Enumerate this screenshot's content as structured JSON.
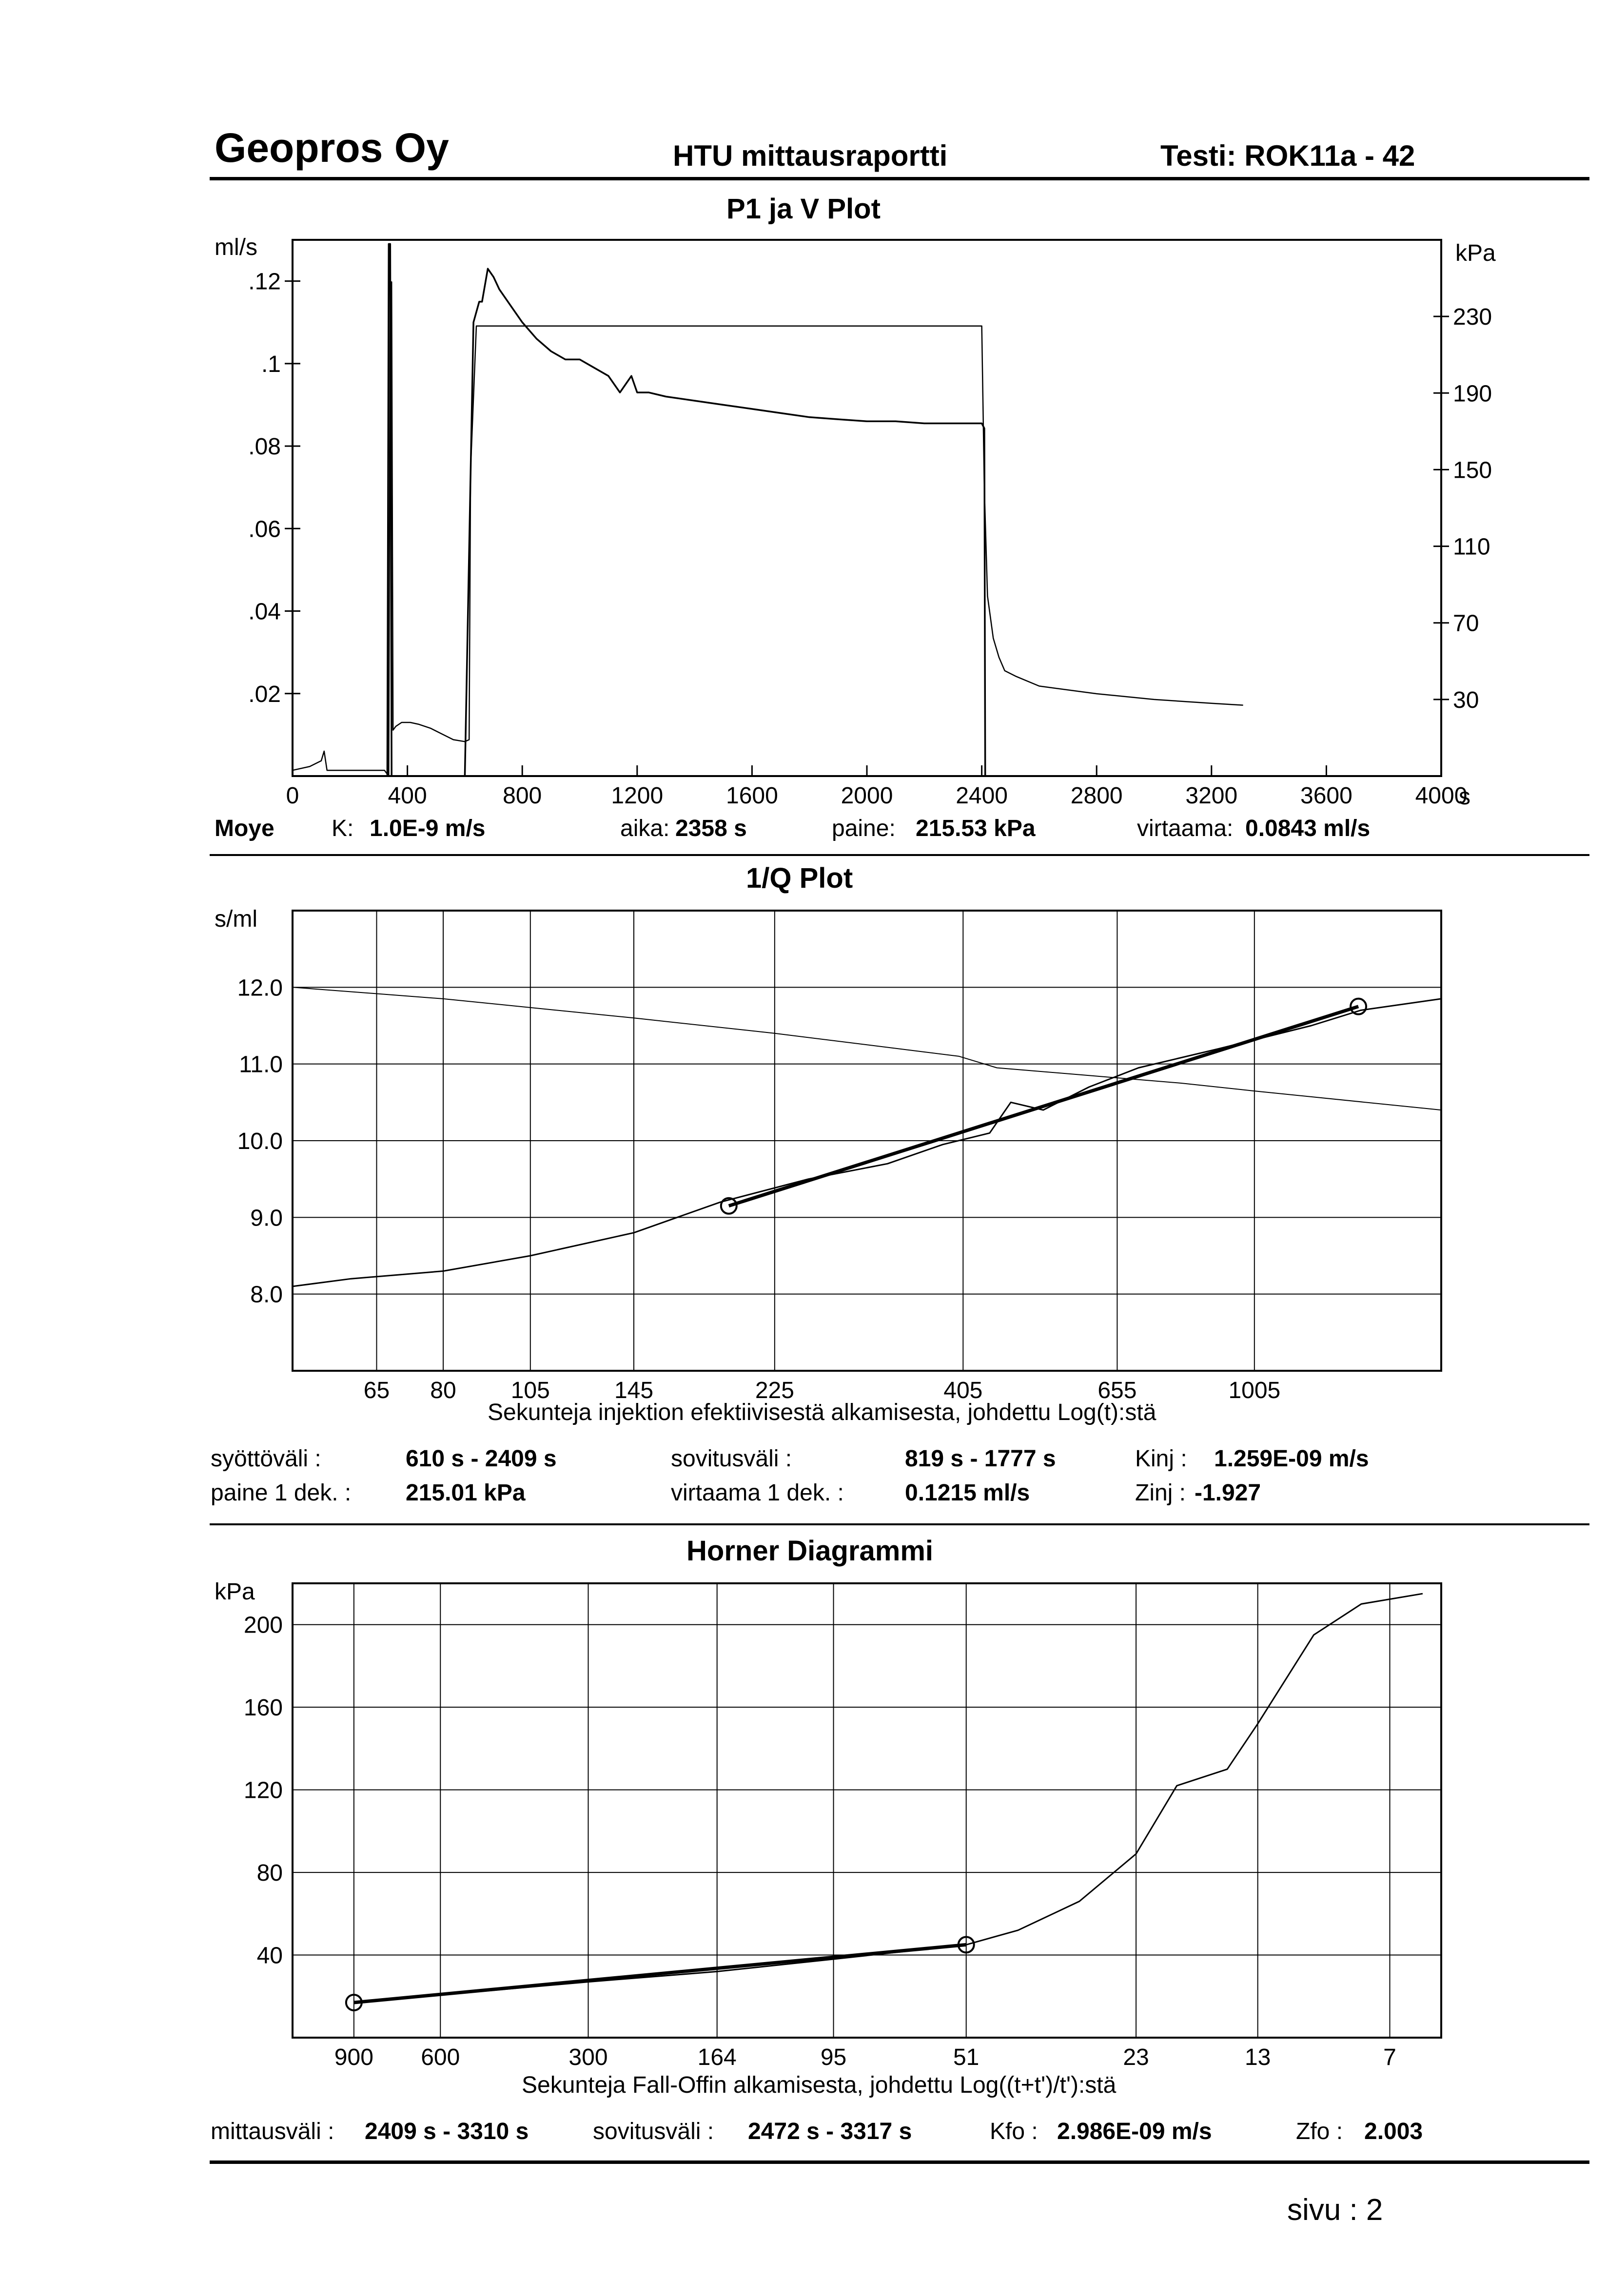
{
  "header": {
    "company": "Geopros Oy",
    "report": "HTU mittausraportti",
    "test": "Testi: ROK11a - 42"
  },
  "plot1": {
    "info": {
      "method": "Moye",
      "k_label": "K:",
      "k_value": "1.0E-9 m/s",
      "time_label": "aika:",
      "time_value": "2358 s",
      "pressure_label": "paine:",
      "pressure_value": "215.53 kPa",
      "flow_label": "virtaama:",
      "flow_value": "0.0843 ml/s"
    }
  },
  "plot2": {
    "info": {
      "feed_label": "syöttöväli :",
      "feed_value": "610 s - 2409 s",
      "fit_label": "sovitusväli :",
      "fit_value": "819 s  -  1777 s",
      "kinj_label": "Kinj :",
      "kinj_value": "1.259E-09 m/s",
      "p1_label": "paine 1 dek. :",
      "p1_value": "215.01 kPa",
      "q1_label": "virtaama 1 dek. :",
      "q1_value": "0.1215 ml/s",
      "zinj_label": "Zinj :",
      "zinj_value": "-1.927"
    }
  },
  "plot3": {
    "info": {
      "meas_label": "mittausväli :",
      "meas_value": "2409 s - 3310 s",
      "fit_label": "sovitusväli :",
      "fit_value": "2472 s - 3317 s",
      "kfo_label": "Kfo :",
      "kfo_value": "2.986E-09 m/s",
      "zfo_label": "Zfo :",
      "zfo_value": "2.003"
    }
  },
  "footer": {
    "page": "sivu :  2"
  },
  "chart_data": [
    {
      "type": "line",
      "title": "P1 ja V Plot",
      "xunit": "s",
      "yunit_left": "ml/s",
      "yunit_right": "kPa",
      "xlim": [
        0,
        4000
      ],
      "ylim_left": [
        0,
        0.13
      ],
      "ylim_right": [
        -10,
        270
      ],
      "xticks": [
        0,
        400,
        800,
        1200,
        1600,
        2000,
        2400,
        2800,
        3200,
        3600,
        4000
      ],
      "yticks_left": [
        ".02",
        ".04",
        ".06",
        ".08",
        ".1",
        ".12"
      ],
      "yticks_right": [
        "30",
        "70",
        "110",
        "150",
        "190",
        "230"
      ],
      "series": [
        {
          "axis": "right",
          "x": [
            0,
            60,
            100,
            110,
            120,
            240,
            320,
            335,
            340,
            345,
            350,
            360,
            380,
            410,
            440,
            480,
            520,
            560,
            600,
            615,
            620,
            640,
            660,
            680,
            700,
            760,
            800,
            1000,
            1400,
            1800,
            2200,
            2400,
            2409,
            2420,
            2440,
            2460,
            2480,
            2520,
            2600,
            2800,
            3000,
            3200,
            3310
          ],
          "y": [
            -7,
            -5,
            -2,
            3,
            -7,
            -7,
            -7,
            -10,
            248,
            248,
            14,
            16,
            18,
            18,
            17,
            15,
            12,
            9,
            8,
            9,
            150,
            225,
            225,
            225,
            225,
            225,
            225,
            225,
            225,
            225,
            225,
            225,
            140,
            84,
            62,
            52,
            45,
            42,
            37,
            33,
            30,
            28,
            27
          ]
        },
        {
          "axis": "left",
          "x": [
            0,
            330,
            335,
            340,
            345,
            350,
            600,
            630,
            650,
            660,
            680,
            700,
            720,
            760,
            800,
            850,
            900,
            950,
            1000,
            1050,
            1100,
            1140,
            1160,
            1180,
            1200,
            1240,
            1300,
            1400,
            1500,
            1600,
            1700,
            1800,
            1900,
            2000,
            2100,
            2200,
            2300,
            2400,
            2409,
            2412
          ],
          "y": [
            0.0,
            0.0,
            0.129,
            0.129,
            0.0,
            0.0,
            0.0,
            0.11,
            0.115,
            0.115,
            0.123,
            0.121,
            0.118,
            0.114,
            0.11,
            0.106,
            0.103,
            0.101,
            0.101,
            0.099,
            0.097,
            0.093,
            0.095,
            0.097,
            0.093,
            0.093,
            0.092,
            0.091,
            0.09,
            0.089,
            0.088,
            0.087,
            0.0865,
            0.086,
            0.086,
            0.0855,
            0.0855,
            0.0855,
            0.0843,
            0.0
          ]
        }
      ]
    },
    {
      "type": "line",
      "title": "1/Q Plot",
      "xlabel": "Sekunteja injektion efektiivisestä alkamisesta, johdettu Log(t):stä",
      "yunit": "s/ml",
      "xscale": "log",
      "xlim": [
        50,
        1800
      ],
      "ylim": [
        7.0,
        13.0
      ],
      "xticks": [
        65,
        80,
        105,
        145,
        225,
        405,
        655,
        1005
      ],
      "yticks": [
        8.0,
        9.0,
        10.0,
        11.0,
        12.0
      ],
      "series": [
        {
          "x": [
            50,
            60,
            80,
            105,
            145,
            190,
            250,
            320,
            380,
            440,
            470,
            520,
            600,
            700,
            900,
            1200,
            1400,
            1800
          ],
          "y": [
            8.1,
            8.2,
            8.3,
            8.5,
            8.8,
            9.2,
            9.5,
            9.7,
            9.95,
            10.1,
            10.5,
            10.4,
            10.7,
            10.95,
            11.2,
            11.5,
            11.7,
            11.85
          ]
        },
        {
          "x": [
            50,
            80,
            145,
            225,
            300,
            400,
            450,
            600,
            800,
            1000,
            1800
          ],
          "y": [
            12.0,
            11.85,
            11.6,
            11.4,
            11.25,
            11.1,
            10.95,
            10.85,
            10.75,
            10.65,
            10.4
          ]
        },
        {
          "name": "fit",
          "x": [
            195,
            1390
          ],
          "y": [
            9.15,
            11.75
          ]
        }
      ]
    },
    {
      "type": "line",
      "title": "Horner Diagrammi",
      "xlabel": "Sekunteja Fall-Offin alkamisesta, johdettu Log((t+t')/t'):stä",
      "yunit": "kPa",
      "xscale": "log-reversed",
      "xlim": [
        1200,
        5.5
      ],
      "ylim": [
        0,
        220
      ],
      "xticks": [
        900,
        600,
        300,
        164,
        95,
        51,
        23,
        13,
        7
      ],
      "yticks": [
        40,
        80,
        120,
        160,
        200
      ],
      "series": [
        {
          "x": [
            900,
            300,
            164,
            95,
            51,
            40,
            30,
            23,
            19,
            15,
            13,
            10,
            8,
            6
          ],
          "y": [
            17,
            27,
            32,
            38,
            45,
            52,
            66,
            89,
            122,
            130,
            152,
            195,
            210,
            215
          ]
        },
        {
          "name": "fit",
          "x": [
            900,
            51
          ],
          "y": [
            17,
            45
          ]
        }
      ]
    }
  ]
}
